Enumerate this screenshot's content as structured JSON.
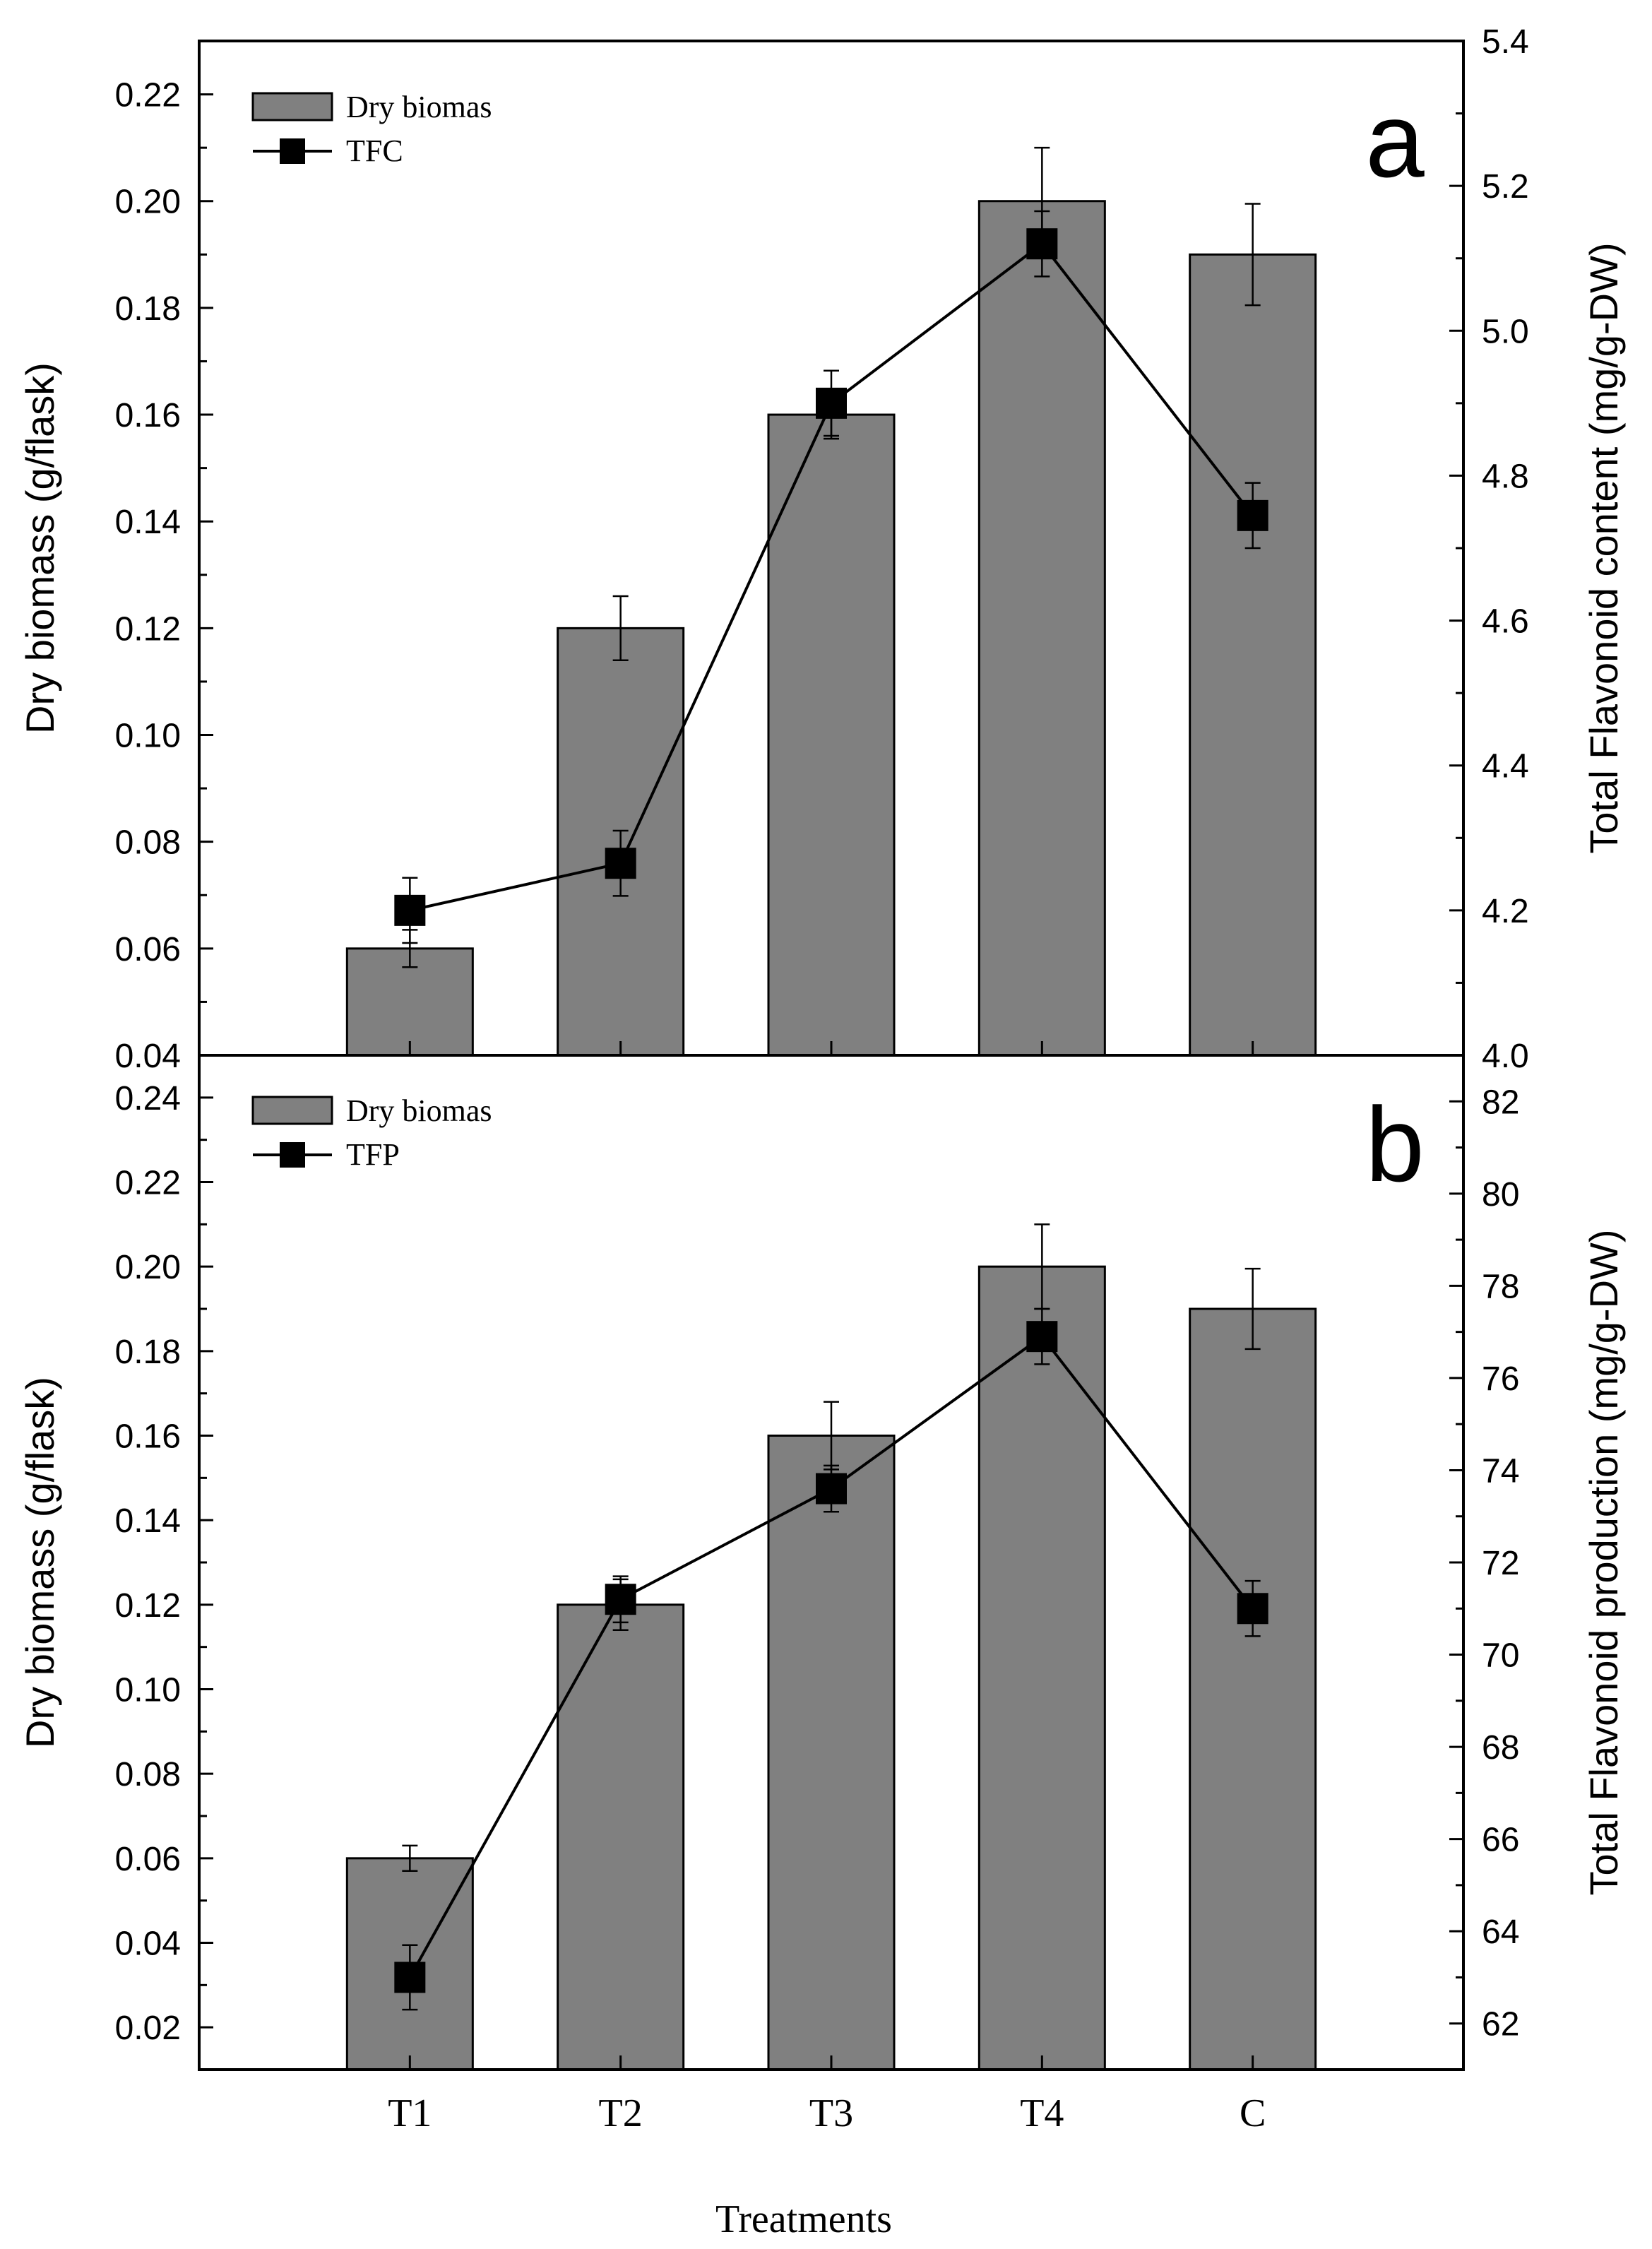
{
  "colors": {
    "bar_fill": "#808080",
    "ink": "#000000",
    "background": "#ffffff"
  },
  "xlabel": "Treatments",
  "chart_data": [
    {
      "type": "bar",
      "panel_label": "a",
      "categories": [
        "T1",
        "T2",
        "T3",
        "T4",
        "C"
      ],
      "ylabel": "Dry biomass (g/flask)",
      "ylim": [
        0.04,
        0.23
      ],
      "yticks": [
        0.04,
        0.06,
        0.08,
        0.1,
        0.12,
        0.14,
        0.16,
        0.18,
        0.2,
        0.22
      ],
      "ytick_labels": [
        "0.04",
        "0.06",
        "0.08",
        "0.10",
        "0.12",
        "0.14",
        "0.16",
        "0.18",
        "0.20",
        "0.22"
      ],
      "y2label": "Total Flavonoid content (mg/g-DW)",
      "y2lim": [
        4.0,
        5.4
      ],
      "y2ticks": [
        4.0,
        4.2,
        4.4,
        4.6,
        4.8,
        5.0,
        5.2,
        5.4
      ],
      "y2tick_labels": [
        "4.0",
        "4.2",
        "4.4",
        "4.6",
        "4.8",
        "5.0",
        "5.2",
        "5.4"
      ],
      "show_xtick_labels": false,
      "legend_position": "top-left",
      "series": [
        {
          "name": "Dry biomas",
          "kind": "bar",
          "axis": "left",
          "values": [
            0.06,
            0.12,
            0.16,
            0.2,
            0.19
          ],
          "errors": [
            0.0035,
            0.006,
            0.0045,
            0.01,
            0.0095
          ]
        },
        {
          "name": "TFC",
          "kind": "line",
          "axis": "right",
          "values": [
            4.2,
            4.265,
            4.9,
            5.12,
            4.745
          ],
          "errors": [
            0.045,
            0.045,
            0.045,
            0.045,
            0.045
          ]
        }
      ]
    },
    {
      "type": "bar",
      "panel_label": "b",
      "categories": [
        "T1",
        "T2",
        "T3",
        "T4",
        "C"
      ],
      "ylabel": "Dry biomass (g/flask)",
      "ylim": [
        0.01,
        0.25
      ],
      "yticks": [
        0.02,
        0.04,
        0.06,
        0.08,
        0.1,
        0.12,
        0.14,
        0.16,
        0.18,
        0.2,
        0.22,
        0.24
      ],
      "ytick_labels": [
        "0.02",
        "0.04",
        "0.06",
        "0.08",
        "0.10",
        "0.12",
        "0.14",
        "0.16",
        "0.18",
        "0.20",
        "0.22",
        "0.24"
      ],
      "y2label": "Total Flavonoid production (mg/g-DW)",
      "y2lim": [
        61,
        83
      ],
      "y2ticks": [
        62,
        64,
        66,
        68,
        70,
        72,
        74,
        76,
        78,
        80,
        82
      ],
      "y2tick_labels": [
        "62",
        "64",
        "66",
        "68",
        "70",
        "72",
        "74",
        "76",
        "78",
        "80",
        "82"
      ],
      "show_xtick_labels": true,
      "legend_position": "top-left",
      "series": [
        {
          "name": "Dry biomas",
          "kind": "bar",
          "axis": "left",
          "values": [
            0.06,
            0.12,
            0.16,
            0.2,
            0.19
          ],
          "errors": [
            0.003,
            0.006,
            0.008,
            0.01,
            0.0095
          ]
        },
        {
          "name": "TFP",
          "kind": "line",
          "axis": "right",
          "values": [
            63.0,
            71.2,
            73.6,
            76.9,
            71.0
          ],
          "errors": [
            0.7,
            0.5,
            0.5,
            0.6,
            0.6
          ]
        }
      ]
    }
  ]
}
